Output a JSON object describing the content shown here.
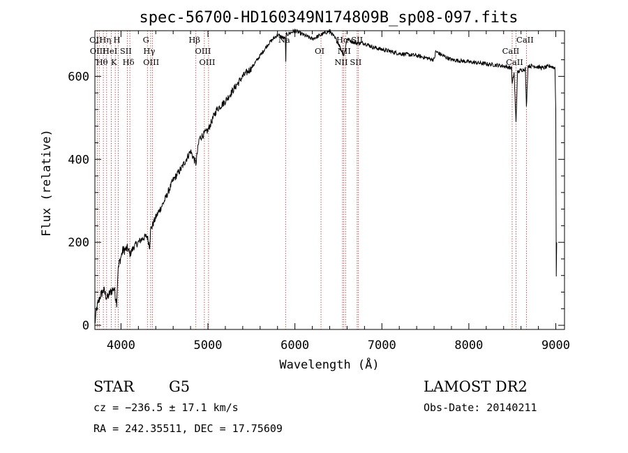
{
  "chart_data": {
    "type": "line",
    "title": "spec-56700-HD160349N174809B_sp08-097.fits",
    "xlabel": "Wavelength (Å)",
    "ylabel": "Flux (relative)",
    "xlim": [
      3700,
      9100
    ],
    "ylim": [
      -10,
      710
    ],
    "x_ticks": [
      4000,
      5000,
      6000,
      7000,
      8000,
      9000
    ],
    "y_ticks": [
      0,
      200,
      400,
      600
    ],
    "grid": false,
    "series": [
      {
        "x": [
          3700,
          3720,
          3760,
          3800,
          3840,
          3880,
          3920,
          3950,
          3965,
          3980,
          4020,
          4080,
          4100,
          4150,
          4200,
          4250,
          4300,
          4330,
          4340,
          4400,
          4500,
          4600,
          4700,
          4800,
          4861,
          4900,
          5000,
          5100,
          5200,
          5300,
          5400,
          5500,
          5600,
          5700,
          5800,
          5890,
          5895,
          5900,
          6000,
          6100,
          6200,
          6300,
          6400,
          6500,
          6563,
          6600,
          6700,
          6800,
          6900,
          7000,
          7200,
          7400,
          7600,
          7620,
          7700,
          7800,
          8000,
          8200,
          8400,
          8490,
          8498,
          8520,
          8542,
          8560,
          8600,
          8650,
          8662,
          8680,
          8750,
          8850,
          8940,
          8990,
          9000,
          9005,
          9010
        ],
        "y": [
          5,
          40,
          70,
          85,
          65,
          80,
          90,
          55,
          130,
          150,
          180,
          185,
          170,
          190,
          200,
          210,
          215,
          190,
          230,
          260,
          300,
          350,
          380,
          420,
          390,
          450,
          470,
          520,
          540,
          570,
          600,
          620,
          650,
          680,
          700,
          690,
          640,
          700,
          710,
          700,
          690,
          700,
          710,
          680,
          650,
          690,
          680,
          680,
          670,
          665,
          655,
          650,
          640,
          660,
          650,
          640,
          635,
          630,
          625,
          620,
          580,
          610,
          490,
          610,
          615,
          618,
          525,
          625,
          625,
          620,
          625,
          620,
          520,
          120,
          200
        ]
      }
    ],
    "lines_top": [
      {
        "x": 3727,
        "label": "OII"
      },
      {
        "x": 3750,
        "label": "OIII"
      },
      {
        "x": 3797,
        "label": "Hθ"
      },
      {
        "x": 3835,
        "label": "Hη"
      },
      {
        "x": 3889,
        "label": "HeI"
      },
      {
        "x": 3934,
        "label": "K"
      },
      {
        "x": 3969,
        "label": "H"
      },
      {
        "x": 4072,
        "label": "SII"
      },
      {
        "x": 4102,
        "label": "Hδ"
      },
      {
        "x": 4304,
        "label": "G"
      },
      {
        "x": 4341,
        "label": "Hγ"
      },
      {
        "x": 4363,
        "label": "OIII"
      },
      {
        "x": 4861,
        "label": "Hβ"
      },
      {
        "x": 4959,
        "label": "OIII"
      },
      {
        "x": 5007,
        "label": "OIII"
      },
      {
        "x": 5893,
        "label": "Na"
      },
      {
        "x": 6300,
        "label": "OI"
      },
      {
        "x": 6548,
        "label": "NII"
      },
      {
        "x": 6563,
        "label": "Hα"
      },
      {
        "x": 6583,
        "label": "NII"
      },
      {
        "x": 6716,
        "label": "SII"
      },
      {
        "x": 6731,
        "label": "SII"
      },
      {
        "x": 8498,
        "label": "CaII"
      },
      {
        "x": 8542,
        "label": "CaII"
      },
      {
        "x": 8662,
        "label": "CaII"
      }
    ]
  },
  "info": {
    "class_label": "STAR",
    "subclass_label": "G5",
    "survey_label": "LAMOST DR2",
    "cz_text": "cz = −236.5 ± 17.1 km/s",
    "obs_date_text": "Obs-Date: 20140211",
    "radec_text": "RA = 242.35511, DEC =  17.75609"
  }
}
